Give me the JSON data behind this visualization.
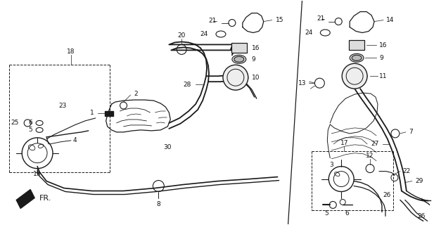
{
  "bg_color": "#ffffff",
  "line_color": "#1a1a1a",
  "fig_width": 6.17,
  "fig_height": 3.2,
  "dpi": 100,
  "fs": 6.5
}
